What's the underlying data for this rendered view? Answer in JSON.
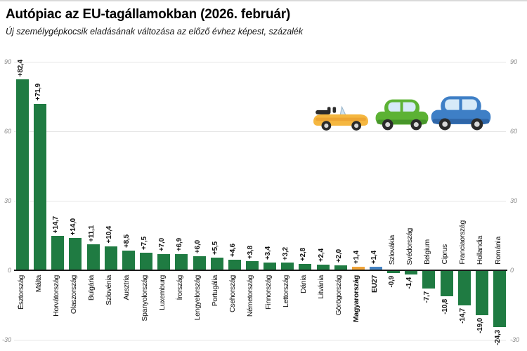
{
  "header": {
    "title": "Autópiac az EU-tagállamokban (2026. február)",
    "subtitle": "Új személygépkocsik eladásának változása az előző évhez képest, százalék"
  },
  "palette": {
    "bar": "#1f7b42",
    "bar_hungary": "#f0a43a",
    "bar_eu27": "#4584c4",
    "axis_line": "#1a1a1a",
    "gridline": "#e5e5e5",
    "tick_text": "#8a8a8a",
    "car_yellow": "#f5b740",
    "car_green": "#5cb234",
    "car_blue": "#3e7fc6"
  },
  "decor": {
    "icons": [
      "yellow-convertible-car",
      "green-car",
      "blue-car"
    ]
  },
  "chart_data": {
    "type": "bar",
    "title": "Autópiac az EU-tagállamokban (2026. február)",
    "subtitle": "Új személygépkocsik eladásának változása az előző évhez képest, százalék",
    "xlabel": "",
    "ylabel": "százalék",
    "ylim": [
      -30,
      90
    ],
    "y_ticks": [
      90,
      60,
      30,
      0,
      -30
    ],
    "grid": true,
    "legend": "none",
    "categories": [
      "Észtország",
      "Málta",
      "Horvátország",
      "Olaszország",
      "Bulgária",
      "Szlovénia",
      "Ausztria",
      "Spanyolország",
      "Luxemburg",
      "Írország",
      "Lengyelország",
      "Portugália",
      "Csehország",
      "Németország",
      "Finnország",
      "Lettország",
      "Dánia",
      "Litvánia",
      "Görögország",
      "Magyarország",
      "EU27",
      "Szlovákia",
      "Svédország",
      "Belgium",
      "Ciprus",
      "Franciaország",
      "Hollandia",
      "Románia"
    ],
    "values": [
      82.4,
      71.9,
      14.7,
      14.0,
      11.1,
      10.4,
      8.5,
      7.5,
      7.0,
      6.9,
      6.0,
      5.5,
      4.6,
      3.8,
      3.4,
      3.2,
      2.8,
      2.4,
      2.0,
      1.4,
      1.4,
      -0.9,
      -1.4,
      -7.7,
      -10.8,
      -14.7,
      -19.0,
      -24.3
    ],
    "value_labels": [
      "+82,4",
      "+71,9",
      "+14,7",
      "+14,0",
      "+11,1",
      "+10,4",
      "+8,5",
      "+7,5",
      "+7,0",
      "+6,9",
      "+6,0",
      "+5,5",
      "+4,6",
      "+3,8",
      "+3,4",
      "+3,2",
      "+2,8",
      "+2,4",
      "+2,0",
      "+1,4",
      "+1,4",
      "-0,9",
      "-1,4",
      "-7,7",
      "-10,8",
      "-14,7",
      "-19,0",
      "-24,3"
    ],
    "bar_colors": {
      "Magyarország": "bar_hungary",
      "EU27": "bar_eu27"
    },
    "bold_categories": [
      "Magyarország",
      "EU27"
    ]
  }
}
